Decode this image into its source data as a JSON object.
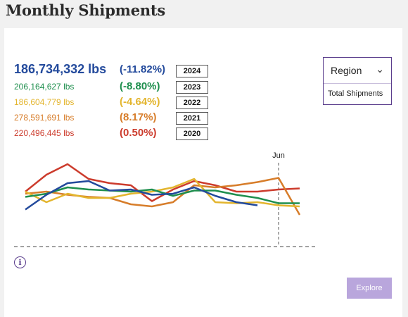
{
  "page": {
    "title": "Monthly Shipments"
  },
  "stats": [
    {
      "lbs": "186,734,332 lbs",
      "pct": "(-11.82%)",
      "year": "2024",
      "color": "#234a9c"
    },
    {
      "lbs": "206,164,627 lbs",
      "pct": "(-8.80%)",
      "year": "2023",
      "color": "#1f8f4e"
    },
    {
      "lbs": "186,604,779 lbs",
      "pct": "(-4.64%)",
      "year": "2022",
      "color": "#e3b52e"
    },
    {
      "lbs": "278,591,691 lbs",
      "pct": "(8.17%)",
      "year": "2021",
      "color": "#d77d2a"
    },
    {
      "lbs": "220,496,445 lbs",
      "pct": "(0.50%)",
      "year": "2020",
      "color": "#cc3b2c"
    }
  ],
  "region": {
    "label": "Region",
    "option": "Total Shipments"
  },
  "explore_label": "Explore",
  "chart_data": {
    "type": "line",
    "marker_label": "Jun",
    "series": [
      {
        "name": "2020",
        "color": "#cc3b2c",
        "values": [
          52,
          68,
          78,
          64,
          60,
          58,
          43,
          54,
          62,
          58,
          52,
          52,
          54,
          55
        ]
      },
      {
        "name": "2021",
        "color": "#d77d2a",
        "values": [
          50,
          52,
          49,
          47,
          46,
          40,
          38,
          42,
          58,
          56,
          58,
          61,
          65,
          30
        ]
      },
      {
        "name": "2022",
        "color": "#e3b52e",
        "values": [
          52,
          42,
          50,
          46,
          46,
          50,
          52,
          56,
          64,
          42,
          41,
          42,
          39,
          38
        ]
      },
      {
        "name": "2023",
        "color": "#1f8f4e",
        "values": [
          47,
          50,
          56,
          54,
          53,
          52,
          54,
          48,
          53,
          53,
          49,
          46,
          41,
          41
        ]
      },
      {
        "name": "2024",
        "color": "#234a9c",
        "values": [
          35,
          49,
          60,
          62,
          53,
          54,
          49,
          50,
          56,
          48,
          42,
          39,
          null,
          null
        ]
      }
    ]
  }
}
